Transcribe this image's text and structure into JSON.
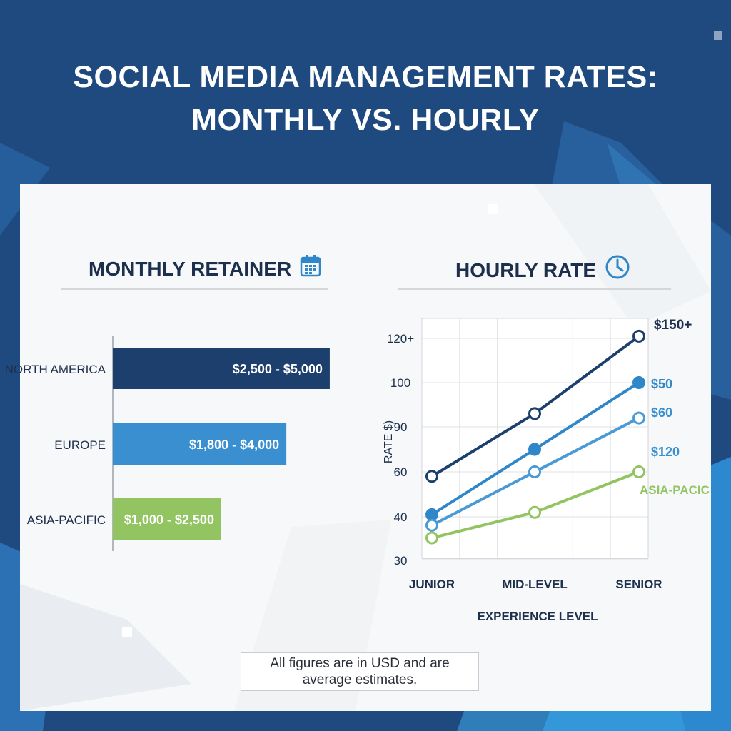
{
  "page": {
    "title_line1": "SOCIAL MEDIA MANAGEMENT RATES:",
    "title_line2": "MONTHLY VS. HOURLY",
    "note_line1": "All figures are in USD and are",
    "note_line2": "average estimates."
  },
  "colors": {
    "background": "#1f4a7f",
    "navy": "#1c3f6e",
    "blue": "#2f86c8",
    "light_blue": "#3a8fd0",
    "green": "#93c462",
    "text_dark": "#1c2f4c"
  },
  "icons": {
    "monthly": "calendar-icon",
    "hourly": "clock-icon"
  },
  "chart_data": [
    {
      "type": "bar",
      "title": "MONTHLY RETAINER",
      "orientation": "horizontal",
      "categories": [
        "NORTH AMERICA",
        "EUROPE",
        "ASIA-PACIFIC"
      ],
      "labels": [
        "$2,500 - $5,000",
        "$1,800 - $4,000",
        "$1,000 - $2,500"
      ],
      "values": [
        5000,
        4000,
        2500
      ],
      "xlim": [
        0,
        5100
      ],
      "bar_colors": [
        "#1c3f6e",
        "#3a8fd0",
        "#93c462"
      ]
    },
    {
      "type": "line",
      "title": "HOURLY RATE",
      "xlabel": "EXPERIENCE LEVEL",
      "ylabel": "RATE $)",
      "categories": [
        "JUNIOR",
        "MID-LEVEL",
        "SENIOR"
      ],
      "y_ticks": [
        "120+",
        "100",
        "90",
        "60",
        "40",
        "30"
      ],
      "grid": true,
      "series": [
        {
          "values": [
            58,
            93,
            121
          ],
          "color": "#1c3f6e",
          "marker": "open",
          "end_label": "$150+"
        },
        {
          "values": [
            41,
            75,
            100
          ],
          "color": "#2f86c8",
          "marker": "filled",
          "end_label": "$50"
        },
        {
          "values": [
            38,
            60,
            92
          ],
          "color": "#4a9ad6",
          "marker": "open",
          "end_label": "$60"
        },
        {
          "values": [
            35,
            42,
            60
          ],
          "color": "#93c462",
          "marker": "open",
          "end_label": "ASIA-PACIC"
        }
      ],
      "extra_label": "$120"
    }
  ]
}
